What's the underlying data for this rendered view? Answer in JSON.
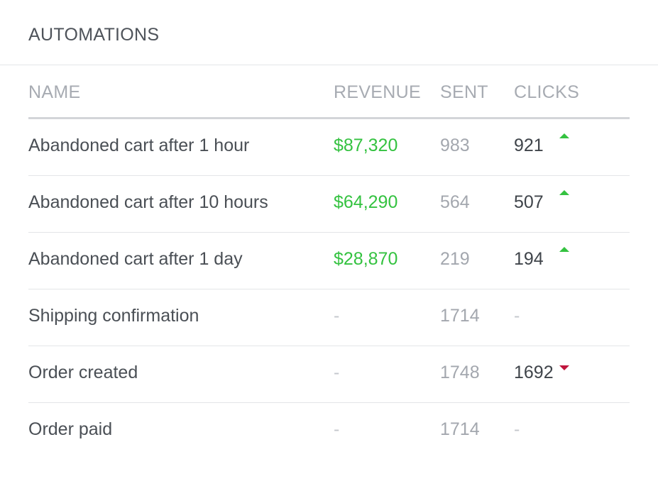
{
  "panel": {
    "title": "AUTOMATIONS"
  },
  "table": {
    "headers": {
      "name": "NAME",
      "revenue": "REVENUE",
      "sent": "SENT",
      "clicks": "CLICKS"
    },
    "rows": [
      {
        "name": "Abandoned cart after 1 hour",
        "revenue": "$87,320",
        "sent": "983",
        "clicks": "921",
        "trend": "up"
      },
      {
        "name": "Abandoned cart after 10 hours",
        "revenue": "$64,290",
        "sent": "564",
        "clicks": "507",
        "trend": "up"
      },
      {
        "name": "Abandoned cart after 1 day",
        "revenue": "$28,870",
        "sent": "219",
        "clicks": "194",
        "trend": "up"
      },
      {
        "name": "Shipping confirmation",
        "revenue": "-",
        "sent": "1714",
        "clicks": "-",
        "trend": "none"
      },
      {
        "name": "Order created",
        "revenue": "-",
        "sent": "1748",
        "clicks": "1692",
        "trend": "down"
      },
      {
        "name": "Order paid",
        "revenue": "-",
        "sent": "1714",
        "clicks": "-",
        "trend": "none"
      }
    ]
  },
  "colors": {
    "revenue_positive": "#34c240",
    "trend_up": "#34c240",
    "trend_down": "#c0143c",
    "muted_text": "#a7abb2"
  }
}
